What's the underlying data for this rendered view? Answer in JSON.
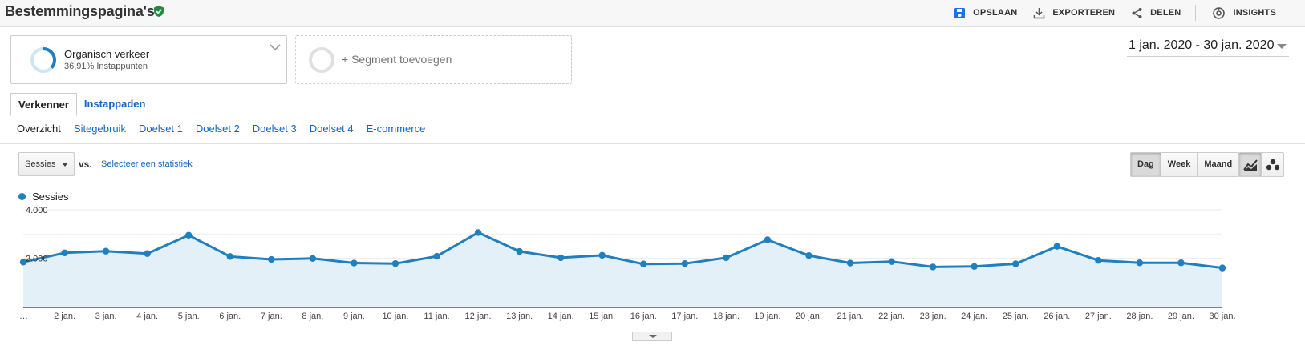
{
  "header": {
    "title": "Bestemmingspagina's",
    "actions": [
      {
        "label": "OPSLAAN",
        "icon": "save-icon"
      },
      {
        "label": "EXPORTEREN",
        "icon": "download-icon"
      },
      {
        "label": "DELEN",
        "icon": "share-icon"
      },
      {
        "label": "INSIGHTS",
        "icon": "insights-icon"
      }
    ]
  },
  "segments": {
    "active_name": "Organisch verkeer",
    "active_sub": "36,91% Instappunten",
    "active_share": 0.3691,
    "add_label": "+ Segment toevoegen"
  },
  "date_range": "1 jan. 2020 - 30 jan. 2020",
  "tabs": [
    {
      "label": "Verkenner",
      "active": true
    },
    {
      "label": "Instappaden",
      "active": false
    }
  ],
  "subnav": [
    {
      "label": "Overzicht",
      "active": true
    },
    {
      "label": "Sitegebruik",
      "active": false
    },
    {
      "label": "Doelset 1",
      "active": false
    },
    {
      "label": "Doelset 2",
      "active": false
    },
    {
      "label": "Doelset 3",
      "active": false
    },
    {
      "label": "Doelset 4",
      "active": false
    },
    {
      "label": "E-commerce",
      "active": false
    }
  ],
  "controls": {
    "metric": "Sessies",
    "vs": "vs.",
    "select_stat": "Selecteer een statistiek",
    "periods": [
      {
        "label": "Dag",
        "active": true
      },
      {
        "label": "Week",
        "active": false
      },
      {
        "label": "Maand",
        "active": false
      }
    ]
  },
  "colors": {
    "series": "#1f7fbf",
    "area": "#e4f0f8",
    "link": "#1565c0",
    "verified": "#1e8e3e",
    "save_icon": "#1a73e8"
  },
  "chart_data": {
    "type": "area",
    "series": [
      {
        "name": "Sessies",
        "values": [
          1840,
          2220,
          2290,
          2190,
          2950,
          2070,
          1950,
          1990,
          1800,
          1780,
          2080,
          3060,
          2280,
          2020,
          2120,
          1760,
          1780,
          2020,
          2760,
          2110,
          1800,
          1860,
          1640,
          1660,
          1770,
          2490,
          1910,
          1810,
          1810,
          1600
        ]
      }
    ],
    "x": [
      "…",
      "2 jan.",
      "3 jan.",
      "4 jan.",
      "5 jan.",
      "6 jan.",
      "7 jan.",
      "8 jan.",
      "9 jan.",
      "10 jan.",
      "11 jan.",
      "12 jan.",
      "13 jan.",
      "14 jan.",
      "15 jan.",
      "16 jan.",
      "17 jan.",
      "18 jan.",
      "19 jan.",
      "20 jan.",
      "21 jan.",
      "22 jan.",
      "23 jan.",
      "24 jan.",
      "25 jan.",
      "26 jan.",
      "27 jan.",
      "28 jan.",
      "29 jan.",
      "30 jan."
    ],
    "y_ticks": [
      "4.000",
      "2.000"
    ],
    "ylim": [
      0,
      4000
    ],
    "grid": true,
    "legend": "top-left"
  }
}
